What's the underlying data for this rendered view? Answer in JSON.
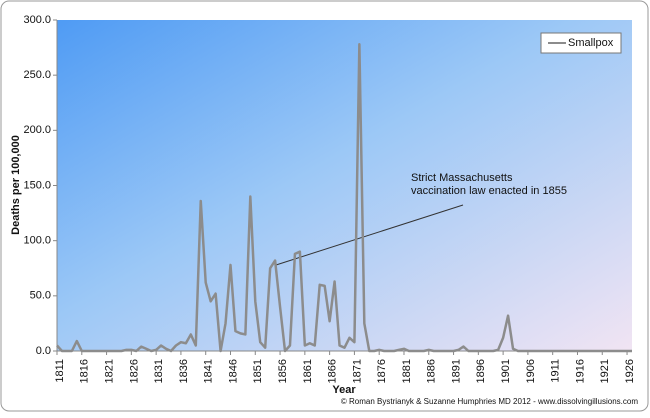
{
  "chart_data": {
    "type": "line",
    "title": null,
    "x_label": "Year",
    "y_label": "Deaths per 100,000",
    "x": [
      1811,
      1812,
      1813,
      1814,
      1815,
      1816,
      1817,
      1818,
      1819,
      1820,
      1821,
      1822,
      1823,
      1824,
      1825,
      1826,
      1827,
      1828,
      1829,
      1830,
      1831,
      1832,
      1833,
      1834,
      1835,
      1836,
      1837,
      1838,
      1839,
      1840,
      1841,
      1842,
      1843,
      1844,
      1845,
      1846,
      1847,
      1848,
      1849,
      1850,
      1851,
      1852,
      1853,
      1854,
      1855,
      1856,
      1857,
      1858,
      1859,
      1860,
      1861,
      1862,
      1863,
      1864,
      1865,
      1866,
      1867,
      1868,
      1869,
      1870,
      1871,
      1872,
      1873,
      1874,
      1875,
      1876,
      1877,
      1878,
      1879,
      1880,
      1881,
      1882,
      1883,
      1884,
      1885,
      1886,
      1887,
      1888,
      1889,
      1890,
      1891,
      1892,
      1893,
      1894,
      1895,
      1896,
      1897,
      1898,
      1899,
      1900,
      1901,
      1902,
      1903,
      1904,
      1905,
      1906,
      1907,
      1908,
      1909,
      1910,
      1911,
      1912,
      1913,
      1914,
      1915,
      1916,
      1917,
      1918,
      1919,
      1920,
      1921,
      1922,
      1923,
      1924,
      1925,
      1926,
      1927
    ],
    "series": [
      {
        "name": "Smallpox",
        "color": "#8c8c8c",
        "values": [
          5,
          0,
          0,
          0,
          9,
          0,
          0,
          0,
          0,
          0,
          0,
          0,
          0,
          0,
          1,
          1,
          0,
          4,
          2,
          0,
          1,
          5,
          2,
          0,
          5,
          8,
          7,
          15,
          5,
          136,
          62,
          45,
          52,
          0,
          25,
          78,
          18,
          16,
          15,
          140,
          45,
          8,
          3,
          75,
          82,
          40,
          0,
          5,
          88,
          90,
          5,
          7,
          5,
          60,
          59,
          27,
          63,
          5,
          3,
          12,
          8,
          278,
          25,
          0,
          0,
          1,
          0,
          0,
          0,
          1,
          2,
          0,
          0,
          0,
          0,
          1,
          0,
          0,
          0,
          0,
          0,
          1,
          4,
          0,
          0,
          0,
          0,
          0,
          0,
          1,
          12,
          32,
          2,
          0,
          0,
          0,
          0,
          0,
          0,
          0,
          0,
          0,
          0,
          0,
          0,
          0,
          0,
          0,
          0,
          0,
          0,
          0,
          0,
          0,
          0,
          0,
          0
        ]
      }
    ],
    "xlim": [
      1811,
      1927
    ],
    "xticks": [
      1811,
      1816,
      1821,
      1826,
      1831,
      1836,
      1841,
      1846,
      1851,
      1856,
      1861,
      1866,
      1871,
      1876,
      1881,
      1886,
      1891,
      1896,
      1901,
      1906,
      1911,
      1916,
      1921,
      1926
    ],
    "ylim": [
      0,
      300
    ],
    "yticks": [
      {
        "value": 0,
        "label": "0.0"
      },
      {
        "value": 50,
        "label": "50.0"
      },
      {
        "value": 100,
        "label": "100.0"
      },
      {
        "value": 150,
        "label": "150.0"
      },
      {
        "value": 200,
        "label": "200.0"
      },
      {
        "value": 250,
        "label": "250.0"
      },
      {
        "value": 300,
        "label": "300.0"
      }
    ],
    "legend": "top-right",
    "annotation": [
      "Strict Massachusetts",
      "vaccination law enacted in 1855"
    ],
    "footer": "© Roman Bystrianyk & Suzanne Humphries MD 2012 - www.dissolvingillusions.com"
  }
}
